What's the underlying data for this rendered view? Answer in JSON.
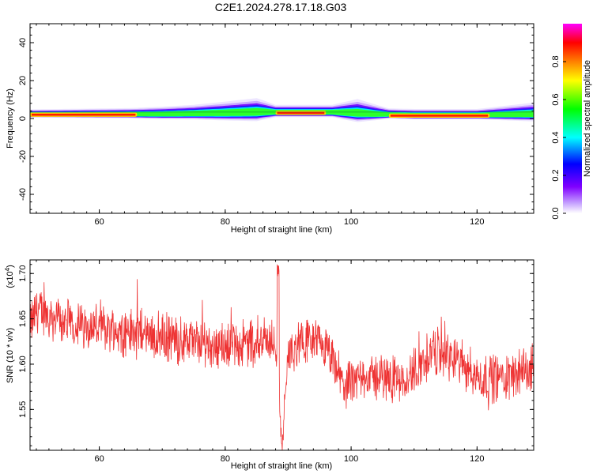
{
  "title": "C2E1.2024.278.17.18.G03",
  "chart_data": [
    {
      "type": "heatmap",
      "xlabel": "Height of straight line (km)",
      "ylabel": "Frequency (Hz)",
      "xlim": [
        49,
        129
      ],
      "ylim": [
        -50,
        50
      ],
      "xticks": [
        60,
        80,
        100,
        120
      ],
      "yticks": [
        -40,
        -20,
        0,
        20,
        40
      ],
      "colorbar": {
        "label": "Normalized spectral amplitude",
        "range": [
          0,
          1
        ],
        "ticks": [
          "0.0",
          "0.2",
          "0.4",
          "0.6",
          "0.8"
        ],
        "colors": [
          "#ffffff",
          "#c9a8ff",
          "#8000ff",
          "#0000ff",
          "#00ffff",
          "#00ff00",
          "#ffff00",
          "#ff8000",
          "#ff0000",
          "#ff00ff"
        ]
      },
      "band": {
        "center_hz": [
          {
            "x": 49,
            "f": 2
          },
          {
            "x": 60,
            "f": 2
          },
          {
            "x": 70,
            "f": 2
          },
          {
            "x": 80,
            "f": 2.5
          },
          {
            "x": 86,
            "f": 3
          },
          {
            "x": 88,
            "f": 3
          },
          {
            "x": 97,
            "f": 3
          },
          {
            "x": 104,
            "f": 2
          },
          {
            "x": 110,
            "f": 1.5
          },
          {
            "x": 120,
            "f": 1.5
          },
          {
            "x": 129,
            "f": 2
          }
        ],
        "halfwidth_hz": [
          {
            "x": 49,
            "w": 1.5
          },
          {
            "x": 65,
            "w": 2
          },
          {
            "x": 75,
            "w": 3
          },
          {
            "x": 85,
            "w": 5
          },
          {
            "x": 88,
            "w": 2.5
          },
          {
            "x": 97,
            "w": 2.5
          },
          {
            "x": 101,
            "w": 5
          },
          {
            "x": 106,
            "w": 2
          },
          {
            "x": 120,
            "w": 2
          },
          {
            "x": 129,
            "w": 4
          }
        ],
        "peak_segments": [
          [
            49,
            66
          ],
          [
            88,
            96
          ],
          [
            106,
            122
          ]
        ]
      }
    },
    {
      "type": "line",
      "xlabel": "Height of straight line (km)",
      "ylabel": "SNR (10 * v/v)",
      "y_multiplier": "(x10^4)",
      "y_multiplier_base": "(x10",
      "y_multiplier_exp": "4",
      "y_multiplier_close": ")",
      "xlim": [
        49,
        129
      ],
      "ylim": [
        1.505,
        1.715
      ],
      "xticks": [
        60,
        80,
        100,
        120
      ],
      "yticks": [
        "1.55",
        "1.60",
        "1.65",
        "1.70"
      ],
      "color": "#ee3333",
      "trend": [
        {
          "x": 49,
          "y": 1.64
        },
        {
          "x": 50,
          "y": 1.66
        },
        {
          "x": 55,
          "y": 1.645
        },
        {
          "x": 60,
          "y": 1.64
        },
        {
          "x": 65,
          "y": 1.635
        },
        {
          "x": 70,
          "y": 1.63
        },
        {
          "x": 75,
          "y": 1.625
        },
        {
          "x": 80,
          "y": 1.62
        },
        {
          "x": 85,
          "y": 1.625
        },
        {
          "x": 87,
          "y": 1.63
        },
        {
          "x": 88.5,
          "y": 1.6
        },
        {
          "x": 89,
          "y": 1.53
        },
        {
          "x": 90,
          "y": 1.61
        },
        {
          "x": 93,
          "y": 1.625
        },
        {
          "x": 96,
          "y": 1.615
        },
        {
          "x": 99,
          "y": 1.575
        },
        {
          "x": 102,
          "y": 1.585
        },
        {
          "x": 106,
          "y": 1.585
        },
        {
          "x": 109,
          "y": 1.585
        },
        {
          "x": 113,
          "y": 1.615
        },
        {
          "x": 117,
          "y": 1.605
        },
        {
          "x": 120,
          "y": 1.585
        },
        {
          "x": 124,
          "y": 1.585
        },
        {
          "x": 129,
          "y": 1.595
        }
      ]
    }
  ]
}
